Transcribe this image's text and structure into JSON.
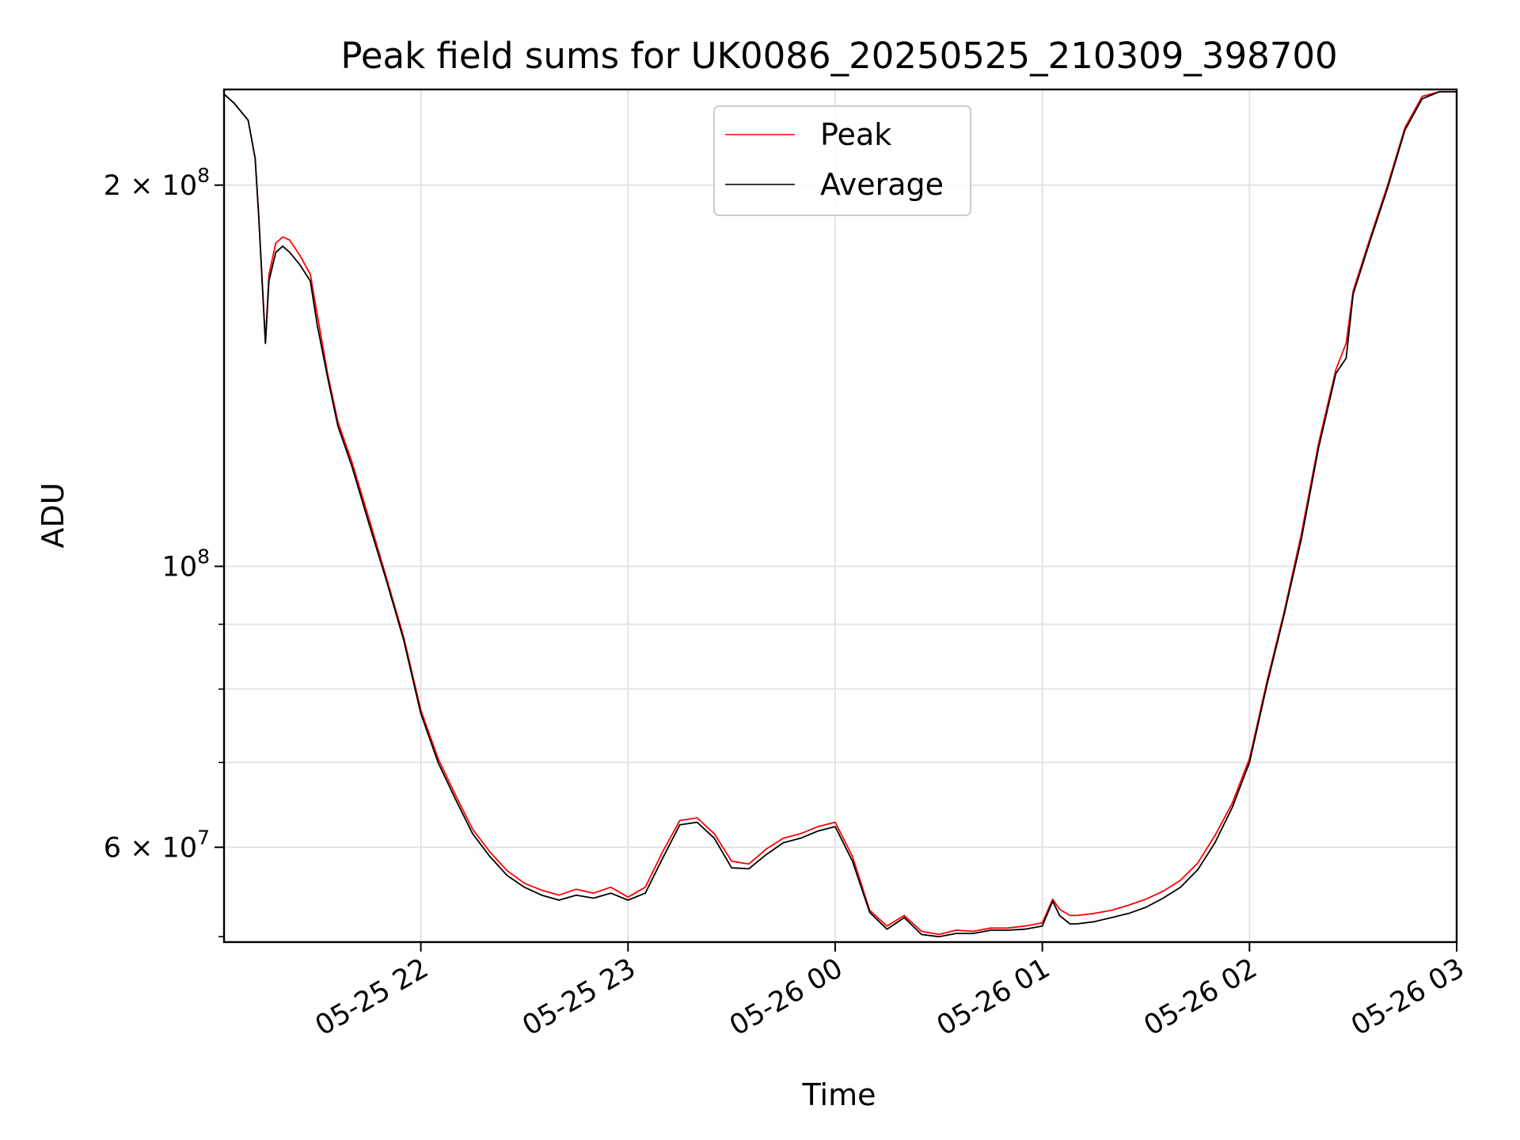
{
  "chart_data": {
    "type": "line",
    "title": "Peak field sums for UK0086_20250525_210309_398700",
    "xlabel": "Time",
    "ylabel": "ADU",
    "yscale": "log",
    "grid": true,
    "legend_position": "top-center",
    "xlim": [
      "2025-05-25 21:03",
      "2025-05-26 03:00"
    ],
    "ylim": [
      50500000,
      238000000
    ],
    "x_ticks": [
      {
        "time": "2025-05-25 22:00",
        "label": "05-25 22"
      },
      {
        "time": "2025-05-25 23:00",
        "label": "05-25 23"
      },
      {
        "time": "2025-05-26 00:00",
        "label": "05-26 00"
      },
      {
        "time": "2025-05-26 01:00",
        "label": "05-26 01"
      },
      {
        "time": "2025-05-26 02:00",
        "label": "05-26 02"
      },
      {
        "time": "2025-05-26 03:00",
        "label": "05-26 03"
      }
    ],
    "y_major_ticks": [
      {
        "value": 60000000,
        "base": "6",
        "exp": "7"
      },
      {
        "value": 100000000,
        "base": "10",
        "exp": "8"
      },
      {
        "value": 200000000,
        "base": "2",
        "exp": "8"
      }
    ],
    "y_minor_ticks": [
      70000000,
      80000000,
      90000000
    ],
    "series": [
      {
        "name": "Peak",
        "color": "#ff0000",
        "x": [
          "2025-05-25 21:03",
          "2025-05-25 21:06",
          "2025-05-25 21:10",
          "2025-05-25 21:12",
          "2025-05-25 21:13",
          "2025-05-25 21:15",
          "2025-05-25 21:16",
          "2025-05-25 21:18",
          "2025-05-25 21:20",
          "2025-05-25 21:22",
          "2025-05-25 21:25",
          "2025-05-25 21:28",
          "2025-05-25 21:30",
          "2025-05-25 21:33",
          "2025-05-25 21:36",
          "2025-05-25 21:40",
          "2025-05-25 21:45",
          "2025-05-25 21:50",
          "2025-05-25 21:55",
          "2025-05-25 22:00",
          "2025-05-25 22:05",
          "2025-05-25 22:10",
          "2025-05-25 22:15",
          "2025-05-25 22:20",
          "2025-05-25 22:25",
          "2025-05-25 22:30",
          "2025-05-25 22:35",
          "2025-05-25 22:40",
          "2025-05-25 22:45",
          "2025-05-25 22:50",
          "2025-05-25 22:55",
          "2025-05-25 23:00",
          "2025-05-25 23:05",
          "2025-05-25 23:10",
          "2025-05-25 23:15",
          "2025-05-25 23:20",
          "2025-05-25 23:25",
          "2025-05-25 23:30",
          "2025-05-25 23:35",
          "2025-05-25 23:40",
          "2025-05-25 23:45",
          "2025-05-25 23:50",
          "2025-05-25 23:55",
          "2025-05-26 00:00",
          "2025-05-26 00:05",
          "2025-05-26 00:10",
          "2025-05-26 00:15",
          "2025-05-26 00:20",
          "2025-05-26 00:25",
          "2025-05-26 00:30",
          "2025-05-26 00:35",
          "2025-05-26 00:40",
          "2025-05-26 00:45",
          "2025-05-26 00:50",
          "2025-05-26 00:55",
          "2025-05-26 01:00",
          "2025-05-26 01:03",
          "2025-05-26 01:05",
          "2025-05-26 01:08",
          "2025-05-26 01:10",
          "2025-05-26 01:15",
          "2025-05-26 01:20",
          "2025-05-26 01:25",
          "2025-05-26 01:30",
          "2025-05-26 01:35",
          "2025-05-26 01:40",
          "2025-05-26 01:45",
          "2025-05-26 01:50",
          "2025-05-26 01:55",
          "2025-05-26 02:00",
          "2025-05-26 02:05",
          "2025-05-26 02:10",
          "2025-05-26 02:15",
          "2025-05-26 02:20",
          "2025-05-26 02:25",
          "2025-05-26 02:28",
          "2025-05-26 02:30",
          "2025-05-26 02:35",
          "2025-05-26 02:40",
          "2025-05-26 02:45",
          "2025-05-26 02:50",
          "2025-05-26 02:55",
          "2025-05-26 03:00"
        ],
        "y": [
          236000000,
          232000000,
          225000000,
          210000000,
          190000000,
          150000000,
          170000000,
          180000000,
          182000000,
          181000000,
          176000000,
          170000000,
          158000000,
          142000000,
          130000000,
          121000000,
          109000000,
          98000000,
          88000000,
          77000000,
          70500000,
          66000000,
          62000000,
          59500000,
          57500000,
          56200000,
          55500000,
          55000000,
          55600000,
          55200000,
          55800000,
          54800000,
          55800000,
          59500000,
          63000000,
          63300000,
          61500000,
          58500000,
          58200000,
          59800000,
          61000000,
          61500000,
          62300000,
          62800000,
          59000000,
          53500000,
          52000000,
          53000000,
          51500000,
          51200000,
          51600000,
          51500000,
          51800000,
          51800000,
          52000000,
          52300000,
          54600000,
          53600000,
          53000000,
          53000000,
          53200000,
          53500000,
          54000000,
          54600000,
          55400000,
          56500000,
          58300000,
          61300000,
          65000000,
          70500000,
          81000000,
          92000000,
          106000000,
          125000000,
          143000000,
          150000000,
          165000000,
          182000000,
          200000000,
          222000000,
          235000000,
          237000000,
          237000000
        ]
      },
      {
        "name": "Average",
        "color": "#000000",
        "x": [
          "2025-05-25 21:03",
          "2025-05-25 21:06",
          "2025-05-25 21:10",
          "2025-05-25 21:12",
          "2025-05-25 21:13",
          "2025-05-25 21:15",
          "2025-05-25 21:16",
          "2025-05-25 21:18",
          "2025-05-25 21:20",
          "2025-05-25 21:22",
          "2025-05-25 21:25",
          "2025-05-25 21:28",
          "2025-05-25 21:30",
          "2025-05-25 21:33",
          "2025-05-25 21:36",
          "2025-05-25 21:40",
          "2025-05-25 21:45",
          "2025-05-25 21:50",
          "2025-05-25 21:55",
          "2025-05-25 22:00",
          "2025-05-25 22:05",
          "2025-05-25 22:10",
          "2025-05-25 22:15",
          "2025-05-25 22:20",
          "2025-05-25 22:25",
          "2025-05-25 22:30",
          "2025-05-25 22:35",
          "2025-05-25 22:40",
          "2025-05-25 22:45",
          "2025-05-25 22:50",
          "2025-05-25 22:55",
          "2025-05-25 23:00",
          "2025-05-25 23:05",
          "2025-05-25 23:10",
          "2025-05-25 23:15",
          "2025-05-25 23:20",
          "2025-05-25 23:25",
          "2025-05-25 23:30",
          "2025-05-25 23:35",
          "2025-05-25 23:40",
          "2025-05-25 23:45",
          "2025-05-25 23:50",
          "2025-05-25 23:55",
          "2025-05-26 00:00",
          "2025-05-26 00:05",
          "2025-05-26 00:10",
          "2025-05-26 00:15",
          "2025-05-26 00:20",
          "2025-05-26 00:25",
          "2025-05-26 00:30",
          "2025-05-26 00:35",
          "2025-05-26 00:40",
          "2025-05-26 00:45",
          "2025-05-26 00:50",
          "2025-05-26 00:55",
          "2025-05-26 01:00",
          "2025-05-26 01:03",
          "2025-05-26 01:05",
          "2025-05-26 01:08",
          "2025-05-26 01:10",
          "2025-05-26 01:15",
          "2025-05-26 01:20",
          "2025-05-26 01:25",
          "2025-05-26 01:30",
          "2025-05-26 01:35",
          "2025-05-26 01:40",
          "2025-05-26 01:45",
          "2025-05-26 01:50",
          "2025-05-26 01:55",
          "2025-05-26 02:00",
          "2025-05-26 02:05",
          "2025-05-26 02:10",
          "2025-05-26 02:15",
          "2025-05-26 02:20",
          "2025-05-26 02:25",
          "2025-05-26 02:28",
          "2025-05-26 02:30",
          "2025-05-26 02:35",
          "2025-05-26 02:40",
          "2025-05-26 02:45",
          "2025-05-26 02:50",
          "2025-05-26 02:55",
          "2025-05-26 03:00"
        ],
        "y": [
          236000000,
          232000000,
          225000000,
          210000000,
          190000000,
          150000000,
          168000000,
          177000000,
          179000000,
          177000000,
          173000000,
          168000000,
          155000000,
          141000000,
          129000000,
          120000000,
          108000000,
          97500000,
          87500000,
          76500000,
          70000000,
          65500000,
          61500000,
          59000000,
          57000000,
          55800000,
          55000000,
          54500000,
          55000000,
          54700000,
          55200000,
          54500000,
          55200000,
          58800000,
          62500000,
          62800000,
          61000000,
          57800000,
          57700000,
          59200000,
          60500000,
          61000000,
          61800000,
          62300000,
          58500000,
          53300000,
          51700000,
          52800000,
          51200000,
          51000000,
          51300000,
          51300000,
          51600000,
          51600000,
          51700000,
          52000000,
          54400000,
          53000000,
          52200000,
          52200000,
          52400000,
          52800000,
          53200000,
          53800000,
          54700000,
          55800000,
          57600000,
          60500000,
          64500000,
          70000000,
          80500000,
          91500000,
          105000000,
          124000000,
          142000000,
          146000000,
          164000000,
          181000000,
          199000000,
          221000000,
          234000000,
          237000000,
          237000000
        ]
      }
    ]
  }
}
